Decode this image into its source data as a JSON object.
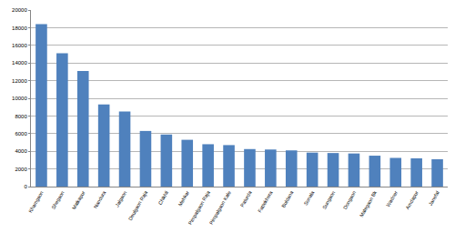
{
  "chart_data": {
    "type": "bar",
    "categories": [
      "Khamgaon",
      "Shegaon",
      "Malkapur",
      "Nandura",
      "Jalgaon",
      "Deulgaon Raja",
      "Chikhli",
      "Mehkar",
      "Pimpalgaon Raja",
      "Pimpalgaon Kale",
      "Paturda",
      "Fattekhera",
      "Buldana",
      "Sonala",
      "Sungaon",
      "Dongaon",
      "Malegaon Bk",
      "Wadner",
      "Amdapur",
      "Janefal"
    ],
    "values": [
      18400,
      15100,
      13100,
      9300,
      8500,
      6300,
      5900,
      5300,
      4800,
      4700,
      4250,
      4200,
      4100,
      3850,
      3800,
      3750,
      3500,
      3250,
      3200,
      3100
    ],
    "color": "#4f81bd",
    "ylim": [
      0,
      20000
    ],
    "yticks": [
      0,
      2000,
      4000,
      6000,
      8000,
      10000,
      12000,
      14000,
      16000,
      18000,
      20000
    ],
    "grid": true
  }
}
